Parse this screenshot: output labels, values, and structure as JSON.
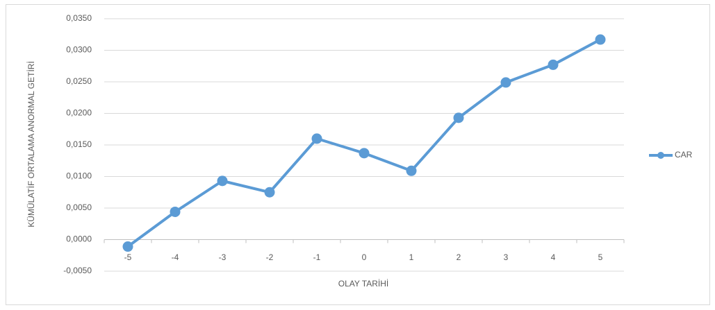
{
  "chart_data": {
    "type": "line",
    "categories": [
      "-5",
      "-4",
      "-3",
      "-2",
      "-1",
      "0",
      "1",
      "2",
      "3",
      "4",
      "5"
    ],
    "series": [
      {
        "name": "CAR",
        "color": "#5b9bd5",
        "values": [
          -0.0011,
          0.0044,
          0.0093,
          0.0075,
          0.016,
          0.0137,
          0.0109,
          0.0193,
          0.0249,
          0.0277,
          0.0317
        ]
      }
    ],
    "xlabel": "OLAY TARİHİ",
    "ylabel": "KÜMÜLATİF ORTALAMA ANORMAL GETİRİ",
    "ylim": [
      -0.005,
      0.035
    ],
    "yticks": [
      {
        "value": -0.005,
        "label": "-0,0050"
      },
      {
        "value": 0,
        "label": "0,0000"
      },
      {
        "value": 0.005,
        "label": "0,0050"
      },
      {
        "value": 0.01,
        "label": "0,0100"
      },
      {
        "value": 0.015,
        "label": "0,0150"
      },
      {
        "value": 0.02,
        "label": "0,0200"
      },
      {
        "value": 0.025,
        "label": "0,0250"
      },
      {
        "value": 0.03,
        "label": "0,0300"
      },
      {
        "value": 0.035,
        "label": "0,0350"
      }
    ],
    "grid": true,
    "legend": "right"
  }
}
